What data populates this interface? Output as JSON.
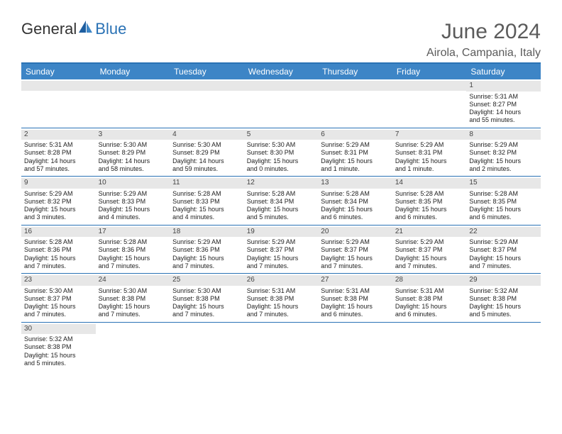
{
  "logo": {
    "general": "General",
    "blue": "Blue"
  },
  "title": "June 2024",
  "location": "Airola, Campania, Italy",
  "colors": {
    "header_bg": "#3d85c6",
    "border": "#2a72b5",
    "daybar": "#e7e7e7",
    "text": "#222222",
    "title": "#5b5b5b"
  },
  "weekdays": [
    "Sunday",
    "Monday",
    "Tuesday",
    "Wednesday",
    "Thursday",
    "Friday",
    "Saturday"
  ],
  "weeks": [
    [
      {
        "n": "",
        "sr": "",
        "ss": "",
        "d1": "",
        "d2": ""
      },
      {
        "n": "",
        "sr": "",
        "ss": "",
        "d1": "",
        "d2": ""
      },
      {
        "n": "",
        "sr": "",
        "ss": "",
        "d1": "",
        "d2": ""
      },
      {
        "n": "",
        "sr": "",
        "ss": "",
        "d1": "",
        "d2": ""
      },
      {
        "n": "",
        "sr": "",
        "ss": "",
        "d1": "",
        "d2": ""
      },
      {
        "n": "",
        "sr": "",
        "ss": "",
        "d1": "",
        "d2": ""
      },
      {
        "n": "1",
        "sr": "Sunrise: 5:31 AM",
        "ss": "Sunset: 8:27 PM",
        "d1": "Daylight: 14 hours",
        "d2": "and 55 minutes."
      }
    ],
    [
      {
        "n": "2",
        "sr": "Sunrise: 5:31 AM",
        "ss": "Sunset: 8:28 PM",
        "d1": "Daylight: 14 hours",
        "d2": "and 57 minutes."
      },
      {
        "n": "3",
        "sr": "Sunrise: 5:30 AM",
        "ss": "Sunset: 8:29 PM",
        "d1": "Daylight: 14 hours",
        "d2": "and 58 minutes."
      },
      {
        "n": "4",
        "sr": "Sunrise: 5:30 AM",
        "ss": "Sunset: 8:29 PM",
        "d1": "Daylight: 14 hours",
        "d2": "and 59 minutes."
      },
      {
        "n": "5",
        "sr": "Sunrise: 5:30 AM",
        "ss": "Sunset: 8:30 PM",
        "d1": "Daylight: 15 hours",
        "d2": "and 0 minutes."
      },
      {
        "n": "6",
        "sr": "Sunrise: 5:29 AM",
        "ss": "Sunset: 8:31 PM",
        "d1": "Daylight: 15 hours",
        "d2": "and 1 minute."
      },
      {
        "n": "7",
        "sr": "Sunrise: 5:29 AM",
        "ss": "Sunset: 8:31 PM",
        "d1": "Daylight: 15 hours",
        "d2": "and 1 minute."
      },
      {
        "n": "8",
        "sr": "Sunrise: 5:29 AM",
        "ss": "Sunset: 8:32 PM",
        "d1": "Daylight: 15 hours",
        "d2": "and 2 minutes."
      }
    ],
    [
      {
        "n": "9",
        "sr": "Sunrise: 5:29 AM",
        "ss": "Sunset: 8:32 PM",
        "d1": "Daylight: 15 hours",
        "d2": "and 3 minutes."
      },
      {
        "n": "10",
        "sr": "Sunrise: 5:29 AM",
        "ss": "Sunset: 8:33 PM",
        "d1": "Daylight: 15 hours",
        "d2": "and 4 minutes."
      },
      {
        "n": "11",
        "sr": "Sunrise: 5:28 AM",
        "ss": "Sunset: 8:33 PM",
        "d1": "Daylight: 15 hours",
        "d2": "and 4 minutes."
      },
      {
        "n": "12",
        "sr": "Sunrise: 5:28 AM",
        "ss": "Sunset: 8:34 PM",
        "d1": "Daylight: 15 hours",
        "d2": "and 5 minutes."
      },
      {
        "n": "13",
        "sr": "Sunrise: 5:28 AM",
        "ss": "Sunset: 8:34 PM",
        "d1": "Daylight: 15 hours",
        "d2": "and 6 minutes."
      },
      {
        "n": "14",
        "sr": "Sunrise: 5:28 AM",
        "ss": "Sunset: 8:35 PM",
        "d1": "Daylight: 15 hours",
        "d2": "and 6 minutes."
      },
      {
        "n": "15",
        "sr": "Sunrise: 5:28 AM",
        "ss": "Sunset: 8:35 PM",
        "d1": "Daylight: 15 hours",
        "d2": "and 6 minutes."
      }
    ],
    [
      {
        "n": "16",
        "sr": "Sunrise: 5:28 AM",
        "ss": "Sunset: 8:36 PM",
        "d1": "Daylight: 15 hours",
        "d2": "and 7 minutes."
      },
      {
        "n": "17",
        "sr": "Sunrise: 5:28 AM",
        "ss": "Sunset: 8:36 PM",
        "d1": "Daylight: 15 hours",
        "d2": "and 7 minutes."
      },
      {
        "n": "18",
        "sr": "Sunrise: 5:29 AM",
        "ss": "Sunset: 8:36 PM",
        "d1": "Daylight: 15 hours",
        "d2": "and 7 minutes."
      },
      {
        "n": "19",
        "sr": "Sunrise: 5:29 AM",
        "ss": "Sunset: 8:37 PM",
        "d1": "Daylight: 15 hours",
        "d2": "and 7 minutes."
      },
      {
        "n": "20",
        "sr": "Sunrise: 5:29 AM",
        "ss": "Sunset: 8:37 PM",
        "d1": "Daylight: 15 hours",
        "d2": "and 7 minutes."
      },
      {
        "n": "21",
        "sr": "Sunrise: 5:29 AM",
        "ss": "Sunset: 8:37 PM",
        "d1": "Daylight: 15 hours",
        "d2": "and 7 minutes."
      },
      {
        "n": "22",
        "sr": "Sunrise: 5:29 AM",
        "ss": "Sunset: 8:37 PM",
        "d1": "Daylight: 15 hours",
        "d2": "and 7 minutes."
      }
    ],
    [
      {
        "n": "23",
        "sr": "Sunrise: 5:30 AM",
        "ss": "Sunset: 8:37 PM",
        "d1": "Daylight: 15 hours",
        "d2": "and 7 minutes."
      },
      {
        "n": "24",
        "sr": "Sunrise: 5:30 AM",
        "ss": "Sunset: 8:38 PM",
        "d1": "Daylight: 15 hours",
        "d2": "and 7 minutes."
      },
      {
        "n": "25",
        "sr": "Sunrise: 5:30 AM",
        "ss": "Sunset: 8:38 PM",
        "d1": "Daylight: 15 hours",
        "d2": "and 7 minutes."
      },
      {
        "n": "26",
        "sr": "Sunrise: 5:31 AM",
        "ss": "Sunset: 8:38 PM",
        "d1": "Daylight: 15 hours",
        "d2": "and 7 minutes."
      },
      {
        "n": "27",
        "sr": "Sunrise: 5:31 AM",
        "ss": "Sunset: 8:38 PM",
        "d1": "Daylight: 15 hours",
        "d2": "and 6 minutes."
      },
      {
        "n": "28",
        "sr": "Sunrise: 5:31 AM",
        "ss": "Sunset: 8:38 PM",
        "d1": "Daylight: 15 hours",
        "d2": "and 6 minutes."
      },
      {
        "n": "29",
        "sr": "Sunrise: 5:32 AM",
        "ss": "Sunset: 8:38 PM",
        "d1": "Daylight: 15 hours",
        "d2": "and 5 minutes."
      }
    ],
    [
      {
        "n": "30",
        "sr": "Sunrise: 5:32 AM",
        "ss": "Sunset: 8:38 PM",
        "d1": "Daylight: 15 hours",
        "d2": "and 5 minutes."
      },
      {
        "n": "",
        "sr": "",
        "ss": "",
        "d1": "",
        "d2": ""
      },
      {
        "n": "",
        "sr": "",
        "ss": "",
        "d1": "",
        "d2": ""
      },
      {
        "n": "",
        "sr": "",
        "ss": "",
        "d1": "",
        "d2": ""
      },
      {
        "n": "",
        "sr": "",
        "ss": "",
        "d1": "",
        "d2": ""
      },
      {
        "n": "",
        "sr": "",
        "ss": "",
        "d1": "",
        "d2": ""
      },
      {
        "n": "",
        "sr": "",
        "ss": "",
        "d1": "",
        "d2": ""
      }
    ]
  ]
}
